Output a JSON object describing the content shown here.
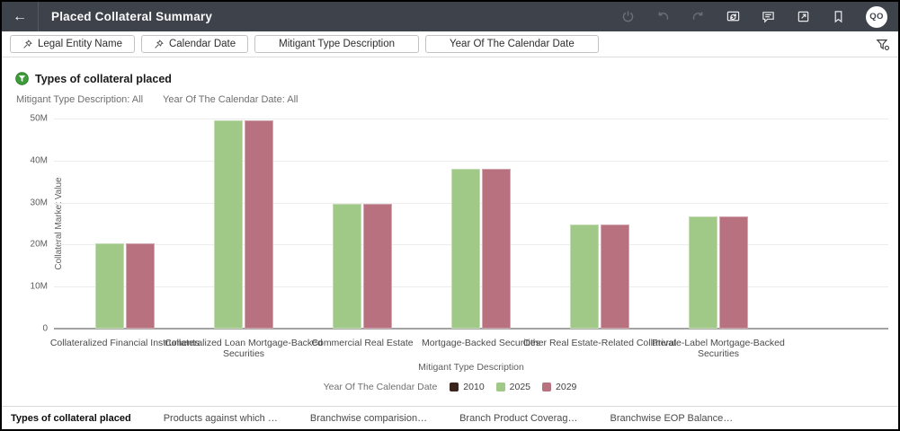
{
  "header": {
    "title": "Placed Collateral Summary",
    "back_icon": "arrow-left-icon",
    "toolbar_icons": [
      "refresh-power-icon",
      "undo-icon",
      "redo-icon",
      "refresh-data-icon",
      "comment-icon",
      "export-icon",
      "bookmark-icon"
    ],
    "avatar_initials": "QO",
    "bg_color": "#3e434b"
  },
  "filter_bar": {
    "pills": [
      {
        "label": "Legal Entity Name",
        "pinned": true
      },
      {
        "label": "Calendar Date",
        "pinned": true
      },
      {
        "label": "Mitigant Type Description",
        "pinned": false
      },
      {
        "label": "Year Of The Calendar Date",
        "pinned": false
      }
    ],
    "right_icon": "filter-funnel-icon"
  },
  "visualization": {
    "title": "Types of collateral placed",
    "title_icon": "green-funnel-badge-icon",
    "filters_applied": [
      {
        "label": "Mitigant Type Description",
        "value": "All"
      },
      {
        "label": "Year Of The Calendar Date",
        "value": "All"
      }
    ],
    "filters_display": "Mitigant Type Description: All    Year Of The Calendar Date: All"
  },
  "chart_data": {
    "type": "bar",
    "title": "Types of collateral placed",
    "xlabel": "Mitigant Type Description",
    "ylabel": "Collateral Market Value",
    "ylim": [
      0,
      50000000
    ],
    "yticks": [
      0,
      10000000,
      20000000,
      30000000,
      40000000,
      50000000
    ],
    "ytick_labels": [
      "0",
      "10M",
      "20M",
      "30M",
      "40M",
      "50M"
    ],
    "grid": true,
    "legend_title": "Year Of The Calendar Date",
    "legend_position": "bottom",
    "categories": [
      "Collateralized Financial Instruments",
      "Collateralized Loan Mortgage-Backed Securities",
      "Commercial Real Estate",
      "Mortgage-Backed Securities",
      "Other Real Estate-Related Collateral",
      "Private-Label Mortgage-Backed Securities"
    ],
    "series": [
      {
        "name": "2010",
        "color": "#3b241c",
        "values": [
          0,
          0,
          0,
          0,
          0,
          0
        ]
      },
      {
        "name": "2025",
        "color": "#a0c987",
        "values": [
          20400000,
          49600000,
          29600000,
          38000000,
          24700000,
          26800000
        ]
      },
      {
        "name": "2029",
        "color": "#b7717f",
        "values": [
          20400000,
          49600000,
          29600000,
          38000000,
          24700000,
          26800000
        ]
      }
    ]
  },
  "tabs": [
    {
      "label": "Types of collateral placed",
      "active": true
    },
    {
      "label": "Products against which …",
      "active": false
    },
    {
      "label": "Branchwise comparision…",
      "active": false
    },
    {
      "label": "Branch Product Coverag…",
      "active": false
    },
    {
      "label": "Branchwise EOP Balance…",
      "active": false
    }
  ]
}
